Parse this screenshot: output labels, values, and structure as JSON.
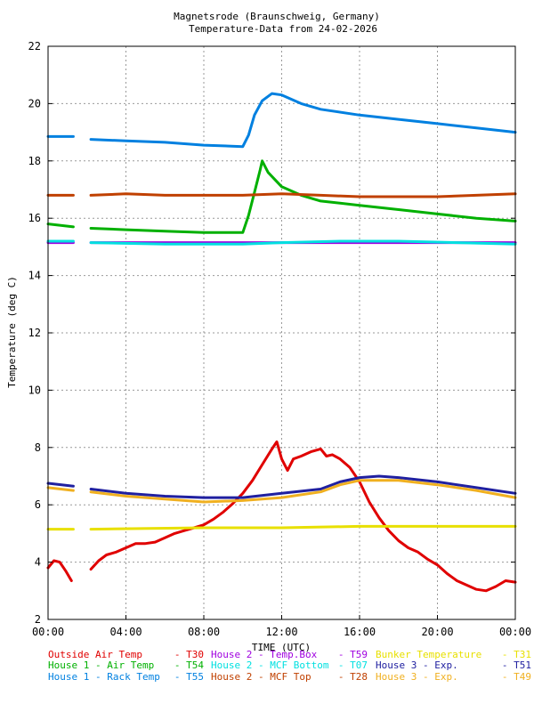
{
  "chart_data": {
    "type": "line",
    "title": "Magnetsrode (Braunschweig, Germany)",
    "subtitle": "Temperature-Data from 24-02-2026",
    "xlabel": "TIME (UTC)",
    "ylabel": "Temperature (deg C)",
    "xlim": [
      0,
      24
    ],
    "ylim": [
      2,
      22
    ],
    "x_ticks": [
      0,
      4,
      8,
      12,
      16,
      20,
      24
    ],
    "x_tick_labels": [
      "00:00",
      "04:00",
      "08:00",
      "12:00",
      "16:00",
      "20:00",
      "00:00"
    ],
    "y_ticks": [
      2,
      4,
      6,
      8,
      10,
      12,
      14,
      16,
      18,
      20,
      22
    ],
    "y_tick_labels": [
      "2",
      "4",
      "6",
      "8",
      "10",
      "12",
      "14",
      "16",
      "18",
      "20",
      "22"
    ],
    "grid": true,
    "legend_position": "bottom",
    "series": [
      {
        "name": "Outside Air Temp",
        "code": "- T30",
        "color": "#e00000",
        "segments": [
          [
            [
              0,
              3.8
            ],
            [
              0.3,
              4.05
            ],
            [
              0.6,
              4.0
            ],
            [
              0.9,
              3.7
            ],
            [
              1.2,
              3.35
            ]
          ],
          [
            [
              2.2,
              3.75
            ],
            [
              2.6,
              4.05
            ],
            [
              3.0,
              4.25
            ],
            [
              3.5,
              4.35
            ],
            [
              4.0,
              4.5
            ],
            [
              4.5,
              4.65
            ],
            [
              5.0,
              4.65
            ],
            [
              5.5,
              4.7
            ],
            [
              6.0,
              4.85
            ],
            [
              6.5,
              5.0
            ],
            [
              7.0,
              5.1
            ],
            [
              7.5,
              5.2
            ],
            [
              8.0,
              5.3
            ],
            [
              8.5,
              5.5
            ],
            [
              9.0,
              5.75
            ],
            [
              9.5,
              6.05
            ],
            [
              10.0,
              6.4
            ],
            [
              10.5,
              6.85
            ],
            [
              11.0,
              7.4
            ],
            [
              11.5,
              7.95
            ],
            [
              11.75,
              8.2
            ],
            [
              12.0,
              7.6
            ],
            [
              12.3,
              7.2
            ],
            [
              12.6,
              7.6
            ],
            [
              13.0,
              7.7
            ],
            [
              13.5,
              7.85
            ],
            [
              14.0,
              7.95
            ],
            [
              14.3,
              7.7
            ],
            [
              14.6,
              7.75
            ],
            [
              15.0,
              7.6
            ],
            [
              15.5,
              7.3
            ],
            [
              16.0,
              6.8
            ],
            [
              16.5,
              6.1
            ],
            [
              17.0,
              5.55
            ],
            [
              17.5,
              5.1
            ],
            [
              18.0,
              4.75
            ],
            [
              18.5,
              4.5
            ],
            [
              19.0,
              4.35
            ],
            [
              19.5,
              4.1
            ],
            [
              20.0,
              3.9
            ],
            [
              20.5,
              3.6
            ],
            [
              21.0,
              3.35
            ],
            [
              21.5,
              3.2
            ],
            [
              22.0,
              3.05
            ],
            [
              22.5,
              3.0
            ],
            [
              23.0,
              3.15
            ],
            [
              23.5,
              3.35
            ],
            [
              24.0,
              3.3
            ]
          ]
        ]
      },
      {
        "name": "House 1 - Air  Temp",
        "code": "- T54",
        "color": "#00b000",
        "segments": [
          [
            [
              0,
              15.8
            ],
            [
              1.3,
              15.7
            ]
          ],
          [
            [
              2.2,
              15.65
            ],
            [
              4,
              15.6
            ],
            [
              6,
              15.55
            ],
            [
              8,
              15.5
            ],
            [
              10,
              15.5
            ],
            [
              10.3,
              16.1
            ],
            [
              10.6,
              16.9
            ],
            [
              10.9,
              17.7
            ],
            [
              11.0,
              18.0
            ],
            [
              11.3,
              17.6
            ],
            [
              12,
              17.1
            ],
            [
              13,
              16.8
            ],
            [
              14,
              16.6
            ],
            [
              16,
              16.45
            ],
            [
              18,
              16.3
            ],
            [
              20,
              16.15
            ],
            [
              22,
              16.0
            ],
            [
              24,
              15.9
            ]
          ]
        ]
      },
      {
        "name": "House 1 - Rack Temp",
        "code": "- T55",
        "color": "#0080e0",
        "segments": [
          [
            [
              0,
              18.85
            ],
            [
              1.3,
              18.85
            ]
          ],
          [
            [
              2.2,
              18.75
            ],
            [
              4,
              18.7
            ],
            [
              6,
              18.65
            ],
            [
              8,
              18.55
            ],
            [
              10,
              18.5
            ],
            [
              10.3,
              18.9
            ],
            [
              10.6,
              19.6
            ],
            [
              11.0,
              20.1
            ],
            [
              11.5,
              20.35
            ],
            [
              12,
              20.3
            ],
            [
              13,
              20.0
            ],
            [
              14,
              19.8
            ],
            [
              16,
              19.6
            ],
            [
              18,
              19.45
            ],
            [
              20,
              19.3
            ],
            [
              22,
              19.15
            ],
            [
              24,
              19.0
            ]
          ]
        ]
      },
      {
        "name": "House 2 - Temp.Box",
        "code": "- T59",
        "color": "#a000e0",
        "segments": [
          [
            [
              0,
              15.15
            ],
            [
              1.3,
              15.15
            ]
          ],
          [
            [
              2.2,
              15.15
            ],
            [
              8,
              15.15
            ],
            [
              12,
              15.15
            ],
            [
              16,
              15.15
            ],
            [
              20,
              15.15
            ],
            [
              24,
              15.15
            ]
          ]
        ]
      },
      {
        "name": "House 2 - MCF Bottom",
        "code": "- T07",
        "color": "#00e0e0",
        "segments": [
          [
            [
              0,
              15.2
            ],
            [
              1.3,
              15.2
            ]
          ],
          [
            [
              2.2,
              15.15
            ],
            [
              6,
              15.1
            ],
            [
              10,
              15.1
            ],
            [
              12,
              15.15
            ],
            [
              15,
              15.2
            ],
            [
              18,
              15.2
            ],
            [
              21,
              15.15
            ],
            [
              24,
              15.1
            ]
          ]
        ]
      },
      {
        "name": "House 2 - MCF Top",
        "code": "- T28",
        "color": "#c04000",
        "segments": [
          [
            [
              0,
              16.8
            ],
            [
              1.3,
              16.8
            ]
          ],
          [
            [
              2.2,
              16.8
            ],
            [
              4,
              16.85
            ],
            [
              6,
              16.8
            ],
            [
              8,
              16.8
            ],
            [
              10,
              16.8
            ],
            [
              12,
              16.85
            ],
            [
              14,
              16.8
            ],
            [
              16,
              16.75
            ],
            [
              18,
              16.75
            ],
            [
              20,
              16.75
            ],
            [
              22,
              16.8
            ],
            [
              24,
              16.85
            ]
          ]
        ]
      },
      {
        "name": "Bunker Temperature",
        "code": "- T31",
        "color": "#e8e000",
        "segments": [
          [
            [
              0,
              5.15
            ],
            [
              1.3,
              5.15
            ]
          ],
          [
            [
              2.2,
              5.15
            ],
            [
              8,
              5.2
            ],
            [
              12,
              5.2
            ],
            [
              16,
              5.25
            ],
            [
              20,
              5.25
            ],
            [
              24,
              5.25
            ]
          ]
        ]
      },
      {
        "name": "House 3 - Exp.",
        "code": "- T51",
        "color": "#2020a0",
        "segments": [
          [
            [
              0,
              6.75
            ],
            [
              1.3,
              6.65
            ]
          ],
          [
            [
              2.2,
              6.55
            ],
            [
              4,
              6.4
            ],
            [
              6,
              6.3
            ],
            [
              8,
              6.25
            ],
            [
              10,
              6.25
            ],
            [
              12,
              6.4
            ],
            [
              14,
              6.55
            ],
            [
              15,
              6.8
            ],
            [
              16,
              6.95
            ],
            [
              17,
              7.0
            ],
            [
              18,
              6.95
            ],
            [
              20,
              6.8
            ],
            [
              22,
              6.6
            ],
            [
              24,
              6.4
            ]
          ]
        ]
      },
      {
        "name": "House 3 - Exp.",
        "code": "- T49",
        "color": "#f0b020",
        "segments": [
          [
            [
              0,
              6.6
            ],
            [
              1.3,
              6.5
            ]
          ],
          [
            [
              2.2,
              6.45
            ],
            [
              4,
              6.3
            ],
            [
              6,
              6.2
            ],
            [
              8,
              6.1
            ],
            [
              10,
              6.15
            ],
            [
              12,
              6.25
            ],
            [
              14,
              6.45
            ],
            [
              15,
              6.7
            ],
            [
              16,
              6.85
            ],
            [
              17,
              6.85
            ],
            [
              18,
              6.85
            ],
            [
              20,
              6.7
            ],
            [
              22,
              6.5
            ],
            [
              24,
              6.25
            ]
          ]
        ]
      }
    ]
  }
}
